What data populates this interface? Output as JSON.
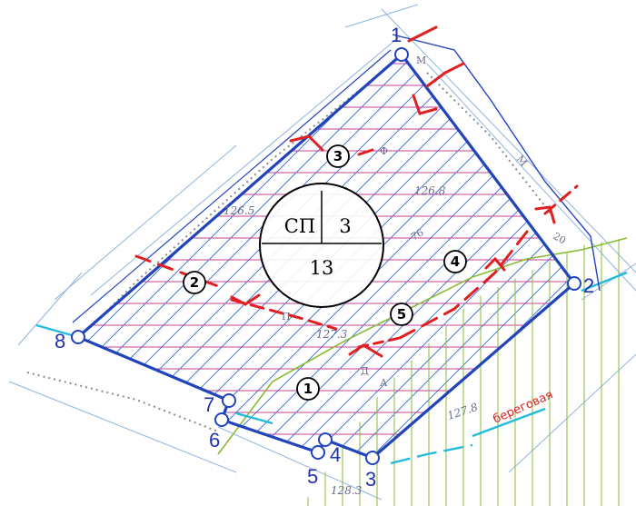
{
  "vertices": [
    {
      "label": "1"
    },
    {
      "label": "2"
    },
    {
      "label": "3"
    },
    {
      "label": "4"
    },
    {
      "label": "5"
    },
    {
      "label": "6"
    },
    {
      "label": "7"
    },
    {
      "label": "8"
    }
  ],
  "zones": [
    "1",
    "2",
    "3",
    "4",
    "5"
  ],
  "stamp": {
    "top_left": "СП",
    "top_right": "3",
    "bottom": "13"
  },
  "elevations": [
    "126.5",
    "126.8",
    "127.3",
    "127.8",
    "128.3"
  ],
  "street_label": "береговая",
  "map_letters": [
    "М",
    "М",
    "А",
    "А",
    "76",
    "20",
    "Ф",
    "П",
    "Д"
  ],
  "colors": {
    "boundary": "#2244bb",
    "grid": "#c040a0",
    "hatch": "#3366cc",
    "markers": "#e02020",
    "green": "#88bb33",
    "cyan": "#22bbdd"
  }
}
